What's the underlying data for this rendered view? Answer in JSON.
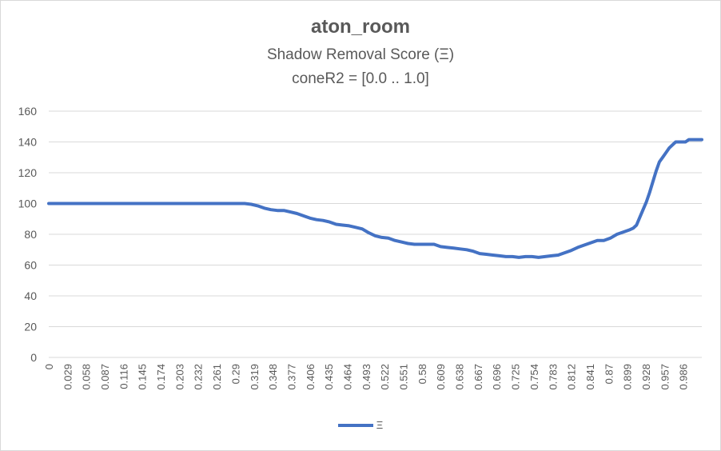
{
  "colors": {
    "series": "#4472c4",
    "grid": "#d9d9d9",
    "text": "#595959"
  },
  "chart_data": {
    "type": "line",
    "title": "aton_room",
    "subtitle": "Shadow Removal Score (Ξ)",
    "subtitle2": "coneR2 = [0.0 .. 1.0]",
    "xlabel": "",
    "ylabel": "",
    "ylim": [
      0,
      160
    ],
    "yticks": [
      0,
      20,
      40,
      60,
      80,
      100,
      120,
      140,
      160
    ],
    "xticks": [
      "0",
      "0.029",
      "0.058",
      "0.087",
      "0.116",
      "0.145",
      "0.174",
      "0.203",
      "0.232",
      "0.261",
      "0.29",
      "0.319",
      "0.348",
      "0.377",
      "0.406",
      "0.435",
      "0.464",
      "0.493",
      "0.522",
      "0.551",
      "0.58",
      "0.609",
      "0.638",
      "0.667",
      "0.696",
      "0.725",
      "0.754",
      "0.783",
      "0.812",
      "0.841",
      "0.87",
      "0.899",
      "0.928",
      "0.957",
      "0.986"
    ],
    "xlim": [
      0,
      1.0
    ],
    "grid": true,
    "legend_position": "bottom",
    "series": [
      {
        "name": "Ξ",
        "x": [
          0,
          0.05,
          0.1,
          0.15,
          0.2,
          0.25,
          0.29,
          0.3,
          0.31,
          0.32,
          0.33,
          0.34,
          0.35,
          0.36,
          0.37,
          0.38,
          0.39,
          0.4,
          0.41,
          0.42,
          0.43,
          0.44,
          0.45,
          0.46,
          0.47,
          0.48,
          0.49,
          0.5,
          0.51,
          0.52,
          0.53,
          0.54,
          0.55,
          0.56,
          0.57,
          0.58,
          0.59,
          0.6,
          0.61,
          0.62,
          0.63,
          0.64,
          0.65,
          0.66,
          0.67,
          0.68,
          0.69,
          0.7,
          0.71,
          0.72,
          0.73,
          0.74,
          0.75,
          0.76,
          0.77,
          0.78,
          0.79,
          0.8,
          0.81,
          0.82,
          0.83,
          0.84,
          0.85,
          0.86,
          0.87,
          0.88,
          0.89,
          0.895,
          0.9,
          0.905,
          0.91,
          0.915,
          0.92,
          0.925,
          0.93,
          0.935,
          0.94,
          0.945,
          0.95,
          0.955,
          0.96,
          0.965,
          0.97,
          0.975,
          0.98,
          0.99,
          1.0
        ],
        "values": [
          100,
          100,
          100,
          100,
          100,
          100,
          100,
          100,
          99.5,
          98.5,
          97,
          96,
          95.5,
          95.5,
          94.5,
          93.5,
          92,
          90.5,
          89.5,
          89,
          88,
          86.5,
          86,
          85.5,
          84.5,
          83.5,
          81,
          79,
          78,
          77.5,
          76,
          75,
          74,
          73.5,
          73.5,
          73.5,
          73.5,
          72,
          71.5,
          71,
          70.5,
          70,
          69,
          67.5,
          67,
          66.5,
          66,
          65.5,
          65.5,
          65,
          65.5,
          65.5,
          65,
          65.5,
          66,
          66.5,
          68,
          69.5,
          71.5,
          73,
          74.5,
          76,
          76,
          77.5,
          80,
          81.5,
          83,
          84,
          86,
          91,
          96,
          101,
          107,
          114,
          121,
          127,
          130,
          133,
          136,
          138,
          140,
          140,
          140,
          140,
          141.5,
          141.5,
          141.5
        ]
      }
    ]
  }
}
